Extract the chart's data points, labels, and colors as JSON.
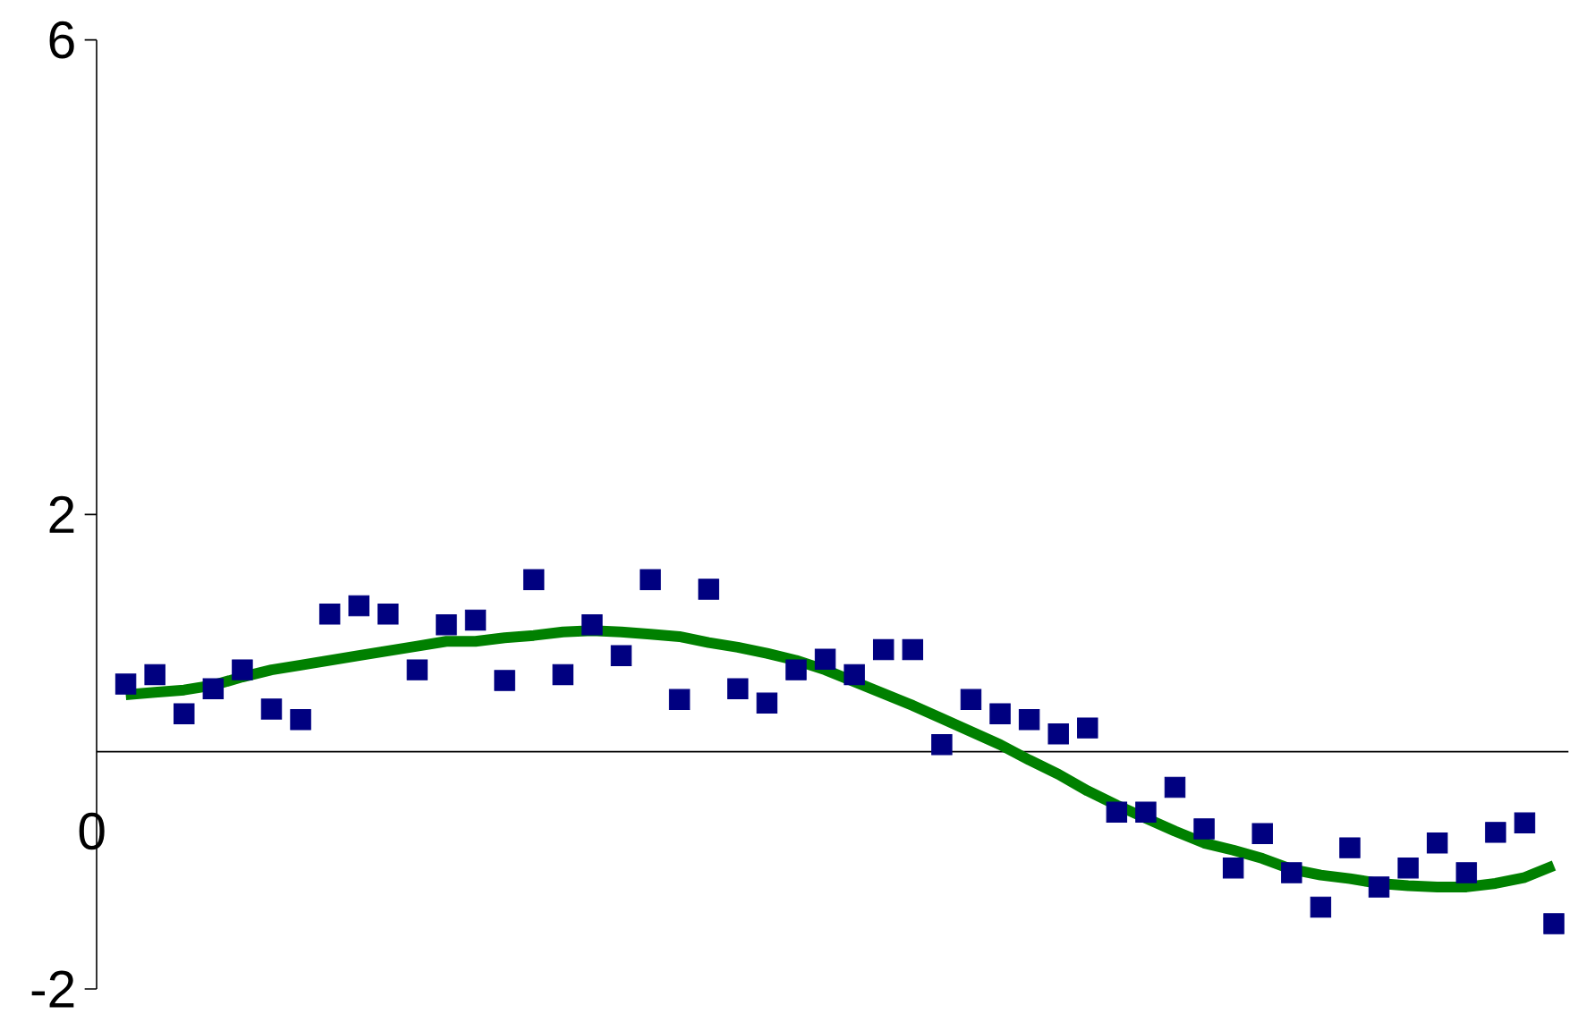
{
  "chart_data": {
    "type": "scatter",
    "ylim": [
      -2,
      6
    ],
    "yticks": [
      -2,
      2,
      6
    ],
    "grid": false,
    "tick_labels": "y",
    "annotations": [
      "0"
    ],
    "categories": [
      null,
      null,
      null,
      null,
      null,
      null,
      null,
      null,
      null,
      null,
      null,
      null,
      null,
      null,
      null,
      null,
      null,
      null,
      null,
      null,
      null,
      null,
      null,
      null,
      null,
      null,
      null,
      null,
      null,
      null,
      null,
      null,
      null,
      null,
      null,
      null,
      null,
      null,
      null,
      null,
      null,
      null,
      null,
      null,
      null,
      null,
      null,
      null,
      null,
      null
    ],
    "series": [
      {
        "color": "#000080",
        "marker": "square",
        "values": [
          0.57,
          0.65,
          0.32,
          0.53,
          0.69,
          0.36,
          0.27,
          1.16,
          1.23,
          1.16,
          0.69,
          1.07,
          1.11,
          0.6,
          1.45,
          0.65,
          1.07,
          0.81,
          1.45,
          0.44,
          1.37,
          0.53,
          0.41,
          0.69,
          0.78,
          0.65,
          0.86,
          0.86,
          0.06,
          0.44,
          0.32,
          0.27,
          0.15,
          0.2,
          -0.51,
          -0.51,
          -0.3,
          -0.65,
          -0.98,
          -0.69,
          -1.02,
          -1.31,
          -0.81,
          -1.14,
          -0.98,
          -0.77,
          -1.02,
          -0.68,
          -0.6,
          -1.45
        ]
      },
      {
        "type": "line",
        "color": "#008000",
        "marker": "none",
        "line_style": "solid",
        "values": [
          0.48,
          0.5,
          0.52,
          0.56,
          0.63,
          0.69,
          0.73,
          0.77,
          0.81,
          0.85,
          0.89,
          0.93,
          0.93,
          0.96,
          0.98,
          1.01,
          1.02,
          1.01,
          0.99,
          0.97,
          0.92,
          0.88,
          0.83,
          0.77,
          0.69,
          0.59,
          0.49,
          0.39,
          0.28,
          0.17,
          0.06,
          -0.07,
          -0.19,
          -0.33,
          -0.45,
          -0.56,
          -0.67,
          -0.77,
          -0.83,
          -0.9,
          -0.99,
          -1.04,
          -1.07,
          -1.11,
          -1.13,
          -1.14,
          -1.14,
          -1.11,
          -1.06,
          -0.96
        ]
      }
    ]
  }
}
